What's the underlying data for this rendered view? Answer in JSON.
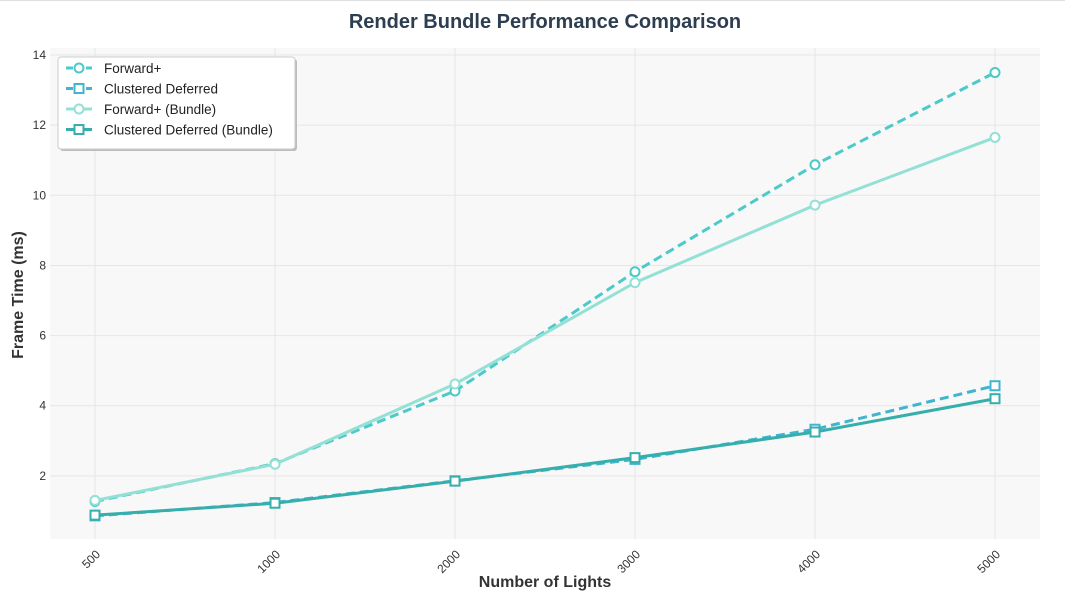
{
  "chart_data": {
    "type": "line",
    "title": "Render Bundle Performance Comparison",
    "xlabel": "Number of Lights",
    "ylabel": "Frame Time (ms)",
    "categories": [
      "500",
      "1000",
      "2000",
      "3000",
      "4000",
      "5000"
    ],
    "ylim": [
      0.2,
      14.2
    ],
    "yticks": [
      2,
      4,
      6,
      8,
      10,
      12,
      14
    ],
    "grid": true,
    "legend_position": "top-left",
    "background": "#f8f8f8",
    "series": [
      {
        "name": "Forward+",
        "values": [
          1.27,
          2.35,
          4.42,
          7.82,
          10.87,
          13.5
        ],
        "color": "#4cc9c9",
        "dash": "dashed",
        "marker": "circle"
      },
      {
        "name": "Clustered Deferred",
        "values": [
          0.86,
          1.24,
          1.86,
          2.47,
          3.33,
          4.57
        ],
        "color": "#3fb5cf",
        "dash": "dashed",
        "marker": "square"
      },
      {
        "name": "Forward+ (Bundle)",
        "values": [
          1.3,
          2.33,
          4.62,
          7.51,
          9.72,
          11.65
        ],
        "color": "#93e0d5",
        "dash": "solid",
        "marker": "circle"
      },
      {
        "name": "Clustered Deferred (Bundle)",
        "values": [
          0.88,
          1.22,
          1.85,
          2.52,
          3.25,
          4.2
        ],
        "color": "#35aeac",
        "dash": "solid",
        "marker": "square"
      }
    ]
  }
}
